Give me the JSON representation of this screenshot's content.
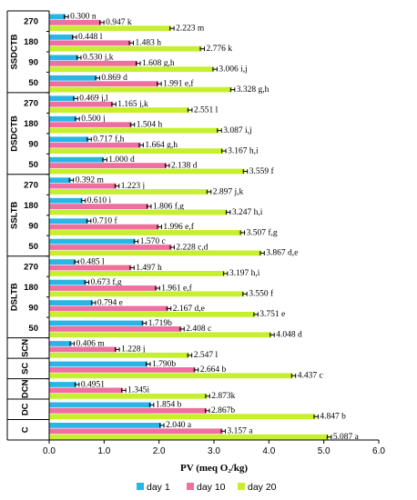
{
  "chart_data": {
    "type": "bar",
    "orientation": "horizontal",
    "xlabel": "PV (meq O₂/kg)",
    "xlim": [
      0,
      6
    ],
    "xticks": [
      "0.0",
      "1.0",
      "2.0",
      "3.0",
      "4.0",
      "5.0",
      "6.0"
    ],
    "series": [
      {
        "name": "day 1",
        "color": "#29b6e6"
      },
      {
        "name": "day 10",
        "color": "#ef6fa0"
      },
      {
        "name": "day 20",
        "color": "#c6ef2e"
      }
    ],
    "groups": [
      {
        "name": "SSDCTB",
        "rows": [
          {
            "label": "270",
            "values": [
              0.3,
              0.947,
              2.223
            ],
            "texts": [
              "0.300 n",
              "0.947 k",
              "2.223 m"
            ]
          },
          {
            "label": "180",
            "values": [
              0.448,
              1.483,
              2.776
            ],
            "texts": [
              "0.448 l",
              "1.483 h",
              "2.776 k"
            ]
          },
          {
            "label": "90",
            "values": [
              0.53,
              1.608,
              3.006
            ],
            "texts": [
              "0.530 j,k",
              "1.608 g,h",
              "3.006 i,j"
            ]
          },
          {
            "label": "50",
            "values": [
              0.869,
              1.991,
              3.328
            ],
            "texts": [
              "0.869 d",
              "1.991 e,f",
              "3.328 g,h"
            ]
          }
        ]
      },
      {
        "name": "DSDCTB",
        "rows": [
          {
            "label": "270",
            "values": [
              0.469,
              1.165,
              2.551
            ],
            "texts": [
              "0.469 j,l",
              "1.165 j,k",
              "2.551 l"
            ]
          },
          {
            "label": "180",
            "values": [
              0.5,
              1.504,
              3.087
            ],
            "texts": [
              "0.500 j",
              "1.504 h",
              "3.087 i,j"
            ]
          },
          {
            "label": "90",
            "values": [
              0.717,
              1.664,
              3.167
            ],
            "texts": [
              "0.717 f,h",
              "1.664 g,h",
              "3.167 h,i"
            ]
          },
          {
            "label": "50",
            "values": [
              1.0,
              2.138,
              3.559
            ],
            "texts": [
              "1.000 d",
              "2.138 d",
              "3.559 f"
            ]
          }
        ]
      },
      {
        "name": "SSLTB",
        "rows": [
          {
            "label": "270",
            "values": [
              0.392,
              1.223,
              2.897
            ],
            "texts": [
              "0.392 m",
              "1.223 j",
              "2.897 j,k"
            ]
          },
          {
            "label": "180",
            "values": [
              0.61,
              1.806,
              3.247
            ],
            "texts": [
              "0.610 i",
              "1.806 f,g",
              "3.247 h,i"
            ]
          },
          {
            "label": "90",
            "values": [
              0.71,
              1.996,
              3.507
            ],
            "texts": [
              "0.710 f",
              "1.996 e,f",
              "3.507 f,g"
            ]
          },
          {
            "label": "50",
            "values": [
              1.57,
              2.228,
              3.867
            ],
            "texts": [
              "1.570 c",
              "2.228 c,d",
              "3.867 d,e"
            ]
          }
        ]
      },
      {
        "name": "DSLTB",
        "rows": [
          {
            "label": "270",
            "values": [
              0.485,
              1.497,
              3.197
            ],
            "texts": [
              "0.485 l",
              "1.497 h",
              "3.197 h,i"
            ]
          },
          {
            "label": "180",
            "values": [
              0.673,
              1.961,
              3.55
            ],
            "texts": [
              "0.673 f,g",
              "1.961 e,f",
              "3.550 f"
            ]
          },
          {
            "label": "90",
            "values": [
              0.794,
              2.167,
              3.751
            ],
            "texts": [
              "0.794 e",
              "2.167 d,e",
              "3.751 e"
            ]
          },
          {
            "label": "50",
            "values": [
              1.719,
              2.408,
              4.048
            ],
            "texts": [
              "1.719b",
              "2.408 c",
              "4.048 d"
            ]
          }
        ]
      },
      {
        "name": "SCN",
        "rows": [
          {
            "label": "",
            "values": [
              0.406,
              1.228,
              2.547
            ],
            "texts": [
              "0.406 m",
              "1.228 j",
              "2.547 l"
            ]
          }
        ]
      },
      {
        "name": "SC",
        "rows": [
          {
            "label": "",
            "values": [
              1.79,
              2.664,
              4.437
            ],
            "texts": [
              "1.790b",
              "2.664 b",
              "4.437 c"
            ]
          }
        ]
      },
      {
        "name": "DCN",
        "rows": [
          {
            "label": "",
            "values": [
              0.4951,
              1.345,
              2.873
            ],
            "texts": [
              "0.4951",
              "1.345i",
              "2.873k"
            ]
          }
        ]
      },
      {
        "name": "DC",
        "rows": [
          {
            "label": "",
            "values": [
              1.854,
              2.867,
              4.847
            ],
            "texts": [
              "1.854 b",
              "2.867b",
              "4.847 b"
            ]
          }
        ]
      },
      {
        "name": "C",
        "rows": [
          {
            "label": "",
            "values": [
              2.04,
              3.157,
              5.087
            ],
            "texts": [
              "2.040 a",
              "3.157 a",
              "5.087 a"
            ]
          }
        ]
      }
    ]
  }
}
